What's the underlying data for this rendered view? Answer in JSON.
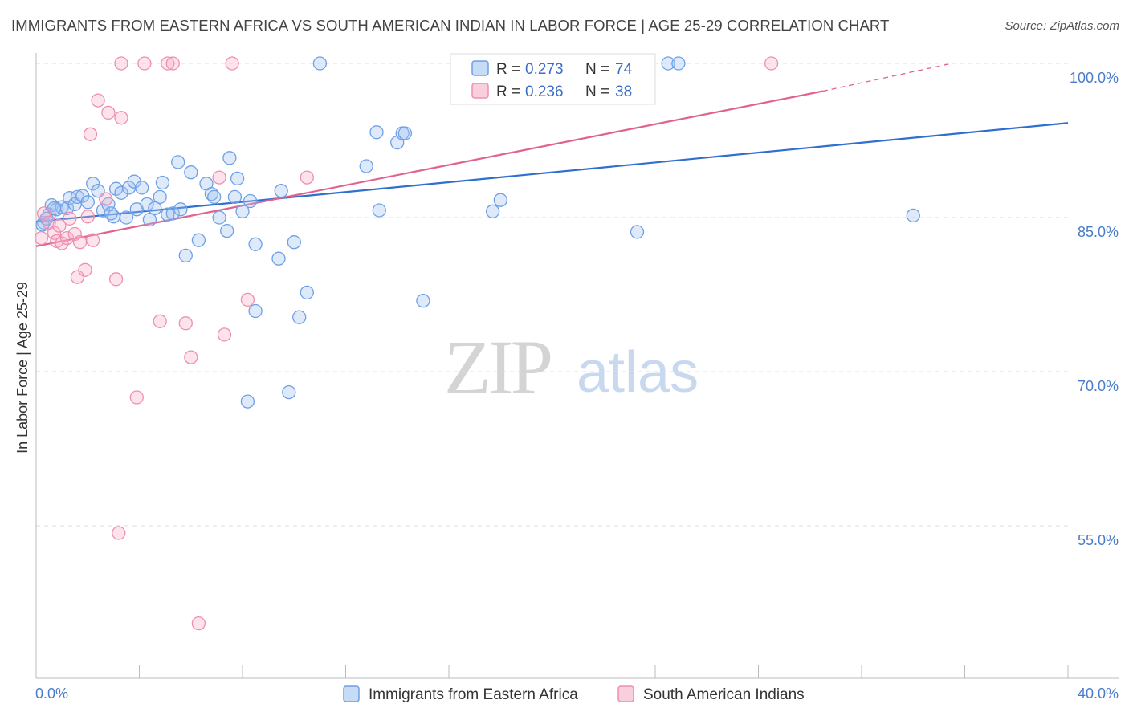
{
  "title": "IMMIGRANTS FROM EASTERN AFRICA VS SOUTH AMERICAN INDIAN IN LABOR FORCE | AGE 25-29 CORRELATION CHART",
  "source": "Source: ZipAtlas.com",
  "watermark": {
    "zip": "ZIP",
    "atlas": "atlas"
  },
  "colors": {
    "blue": "#6fa0e6",
    "blue_fill": "rgba(160,195,240,0.35)",
    "blue_line": "#2f6fce",
    "pink": "#ef8fb0",
    "pink_fill": "rgba(245,175,200,0.35)",
    "pink_line": "#e0608e",
    "tick_text": "#4a7cc9",
    "grid": "#dddddd"
  },
  "legend_box": {
    "rows": [
      {
        "r_label": "R = ",
        "r_value": "0.273",
        "n_label": "N = ",
        "n_value": "74",
        "series": "blue"
      },
      {
        "r_label": "R = ",
        "r_value": "0.236",
        "n_label": "N = ",
        "n_value": "38",
        "series": "pink"
      }
    ]
  },
  "bottom_legend": [
    {
      "label": "Immigrants from Eastern Africa",
      "series": "blue"
    },
    {
      "label": "South American Indians",
      "series": "pink"
    }
  ],
  "chart_data": {
    "type": "scatter",
    "title": "IMMIGRANTS FROM EASTERN AFRICA VS SOUTH AMERICAN INDIAN IN LABOR FORCE | AGE 25-29 CORRELATION CHART",
    "xlabel": "",
    "ylabel": "In Labor Force | Age 25-29",
    "xlim": [
      0,
      40
    ],
    "ylim": [
      40,
      101.5
    ],
    "x_tick_labels": [
      {
        "value": 0,
        "label": "0.0%"
      },
      {
        "value": 40,
        "label": "40.0%"
      }
    ],
    "y_tick_labels": [
      {
        "value": 100,
        "label": "100.0%"
      },
      {
        "value": 85,
        "label": "85.0%"
      },
      {
        "value": 70,
        "label": "70.0%"
      },
      {
        "value": 55,
        "label": "55.0%"
      }
    ],
    "grid": true,
    "series": [
      {
        "name": "Immigrants from Eastern Africa",
        "color": "blue",
        "trend": {
          "x": [
            0,
            40
          ],
          "y": [
            84.6,
            94.2
          ]
        },
        "points": [
          [
            0.3,
            84.5
          ],
          [
            0.5,
            85.3
          ],
          [
            0.6,
            86.2
          ],
          [
            0.8,
            85.8
          ],
          [
            1.0,
            86.0
          ],
          [
            1.2,
            85.9
          ],
          [
            1.3,
            86.9
          ],
          [
            1.5,
            86.3
          ],
          [
            1.6,
            87.0
          ],
          [
            1.8,
            87.1
          ],
          [
            2.0,
            86.5
          ],
          [
            2.2,
            88.3
          ],
          [
            2.4,
            87.6
          ],
          [
            2.6,
            85.7
          ],
          [
            2.8,
            86.3
          ],
          [
            3.0,
            85.1
          ],
          [
            3.1,
            87.8
          ],
          [
            3.3,
            87.4
          ],
          [
            3.5,
            85.0
          ],
          [
            3.6,
            87.9
          ],
          [
            3.8,
            88.5
          ],
          [
            3.9,
            85.8
          ],
          [
            4.1,
            87.9
          ],
          [
            4.3,
            86.3
          ],
          [
            4.4,
            84.8
          ],
          [
            4.6,
            85.9
          ],
          [
            4.8,
            87.0
          ],
          [
            4.9,
            88.4
          ],
          [
            5.1,
            85.3
          ],
          [
            5.3,
            85.4
          ],
          [
            5.5,
            90.4
          ],
          [
            5.6,
            85.8
          ],
          [
            5.8,
            81.3
          ],
          [
            6.0,
            89.4
          ],
          [
            6.3,
            82.8
          ],
          [
            6.6,
            88.3
          ],
          [
            6.8,
            87.3
          ],
          [
            6.9,
            87.0
          ],
          [
            7.1,
            85.0
          ],
          [
            7.4,
            83.7
          ],
          [
            7.5,
            90.8
          ],
          [
            7.7,
            87.0
          ],
          [
            7.8,
            88.8
          ],
          [
            8.0,
            85.6
          ],
          [
            8.3,
            86.6
          ],
          [
            8.5,
            82.4
          ],
          [
            8.5,
            75.9
          ],
          [
            8.2,
            67.1
          ],
          [
            9.4,
            81.0
          ],
          [
            9.5,
            87.6
          ],
          [
            10.0,
            82.6
          ],
          [
            10.2,
            75.3
          ],
          [
            10.5,
            77.7
          ],
          [
            9.8,
            68.0
          ],
          [
            11.0,
            100.0
          ],
          [
            12.8,
            90.0
          ],
          [
            13.2,
            93.3
          ],
          [
            13.3,
            85.7
          ],
          [
            14.0,
            92.3
          ],
          [
            14.2,
            93.2
          ],
          [
            14.3,
            93.2
          ],
          [
            15.0,
            76.9
          ],
          [
            17.3,
            100.0
          ],
          [
            17.7,
            85.6
          ],
          [
            18.0,
            86.7
          ],
          [
            23.3,
            100.0
          ],
          [
            23.3,
            83.6
          ],
          [
            24.5,
            100.0
          ],
          [
            24.9,
            100.0
          ],
          [
            34.0,
            85.2
          ],
          [
            0.25,
            84.3
          ],
          [
            0.4,
            84.9
          ],
          [
            0.7,
            85.9
          ],
          [
            2.9,
            85.4
          ]
        ]
      },
      {
        "name": "South American Indians",
        "color": "pink",
        "trend": {
          "x": [
            0,
            30.5
          ],
          "y": [
            82.2,
            97.3
          ]
        },
        "trend_dashed": {
          "x": [
            30.5,
            35.5
          ],
          "y": [
            97.3,
            100.0
          ]
        },
        "points": [
          [
            0.2,
            83.0
          ],
          [
            0.3,
            85.4
          ],
          [
            0.5,
            84.5
          ],
          [
            0.7,
            83.5
          ],
          [
            0.8,
            82.7
          ],
          [
            0.9,
            84.2
          ],
          [
            1.0,
            82.5
          ],
          [
            1.2,
            83.0
          ],
          [
            1.3,
            84.9
          ],
          [
            1.5,
            83.4
          ],
          [
            1.6,
            79.2
          ],
          [
            1.7,
            82.6
          ],
          [
            1.9,
            79.9
          ],
          [
            2.0,
            85.1
          ],
          [
            2.2,
            82.8
          ],
          [
            2.1,
            93.1
          ],
          [
            2.4,
            96.4
          ],
          [
            2.7,
            86.8
          ],
          [
            2.8,
            95.2
          ],
          [
            3.1,
            79.0
          ],
          [
            3.2,
            54.3
          ],
          [
            3.3,
            94.7
          ],
          [
            3.3,
            100.0
          ],
          [
            3.9,
            67.5
          ],
          [
            4.2,
            100.0
          ],
          [
            4.8,
            74.9
          ],
          [
            5.1,
            100.0
          ],
          [
            5.3,
            100.0
          ],
          [
            5.8,
            74.7
          ],
          [
            6.0,
            71.4
          ],
          [
            6.3,
            45.5
          ],
          [
            7.1,
            88.9
          ],
          [
            7.3,
            73.6
          ],
          [
            7.6,
            100.0
          ],
          [
            8.2,
            77.0
          ],
          [
            10.5,
            88.9
          ],
          [
            22.8,
            100.0
          ],
          [
            28.5,
            100.0
          ]
        ]
      }
    ]
  }
}
